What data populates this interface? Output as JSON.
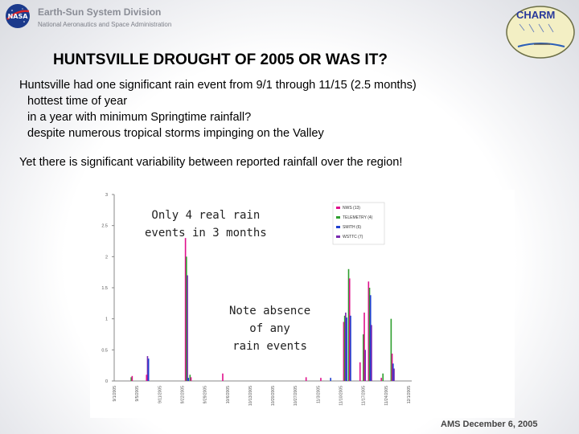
{
  "header": {
    "org_title": "Earth-Sun System Division",
    "org_subtitle": "National Aeronautics and Space Administration",
    "nasa_logo_text": "NASA",
    "charm_logo_text": "CHARM"
  },
  "slide": {
    "title": "HUNTSVILLE DROUGHT OF 2005 OR WAS IT?",
    "lines": [
      "Huntsville had one significant rain event from 9/1 through 11/15 (2.5 months)",
      "hottest time of year",
      "in a year with minimum Springtime rainfall?",
      "despite numerous tropical storms impinging on the Valley",
      "Yet there is significant variability between reported rainfall over the region!"
    ],
    "annotation_1": [
      "Only 4 real rain",
      "events in 3 months"
    ],
    "annotation_2": [
      "Note absence",
      "of any",
      "rain events"
    ],
    "footer": "AMS  December 6, 2005"
  },
  "chart_data": {
    "type": "bar",
    "title": "",
    "xlabel": "",
    "ylabel": "",
    "ylim": [
      0,
      3
    ],
    "yticks": [
      "0",
      "0.5",
      "1",
      "1.5",
      "2",
      "2.5",
      "3"
    ],
    "xticks": [
      "9/1/2005",
      "9/5/2005",
      "9/11/2005",
      "9/22/2005",
      "9/29/2005",
      "10/6/2005",
      "10/13/2005",
      "10/20/2005",
      "10/27/2005",
      "11/3/2005",
      "11/10/2005",
      "11/17/2005",
      "11/24/2005",
      "12/1/2005"
    ],
    "legend_position": "top-right",
    "series": [
      {
        "name": "NWS (13)",
        "color": "#e0108c"
      },
      {
        "name": "TELEMETRY (4)",
        "color": "#2e9e2e"
      },
      {
        "name": "SMITH (6)",
        "color": "#1e3fd0"
      },
      {
        "name": "WSTTC (7)",
        "color": "#7a2ab0"
      }
    ],
    "bars": [
      {
        "day": 5,
        "series": 1,
        "value": 0.06
      },
      {
        "day": 5.3,
        "series": 0,
        "value": 0.08
      },
      {
        "day": 10,
        "series": 3,
        "value": 0.4
      },
      {
        "day": 10.3,
        "series": 2,
        "value": 0.36
      },
      {
        "day": 9.7,
        "series": 0,
        "value": 0.1
      },
      {
        "day": 21.6,
        "series": 0,
        "value": 2.3
      },
      {
        "day": 21.9,
        "series": 1,
        "value": 2.0
      },
      {
        "day": 22.2,
        "series": 3,
        "value": 1.7
      },
      {
        "day": 22.5,
        "series": 2,
        "value": 0.05
      },
      {
        "day": 23,
        "series": 1,
        "value": 0.1
      },
      {
        "day": 23.3,
        "series": 0,
        "value": 0.06
      },
      {
        "day": 33,
        "series": 0,
        "value": 0.12
      },
      {
        "day": 58.5,
        "series": 0,
        "value": 0.06
      },
      {
        "day": 63,
        "series": 0,
        "value": 0.05
      },
      {
        "day": 66,
        "series": 2,
        "value": 0.05
      },
      {
        "day": 70,
        "series": 0,
        "value": 0.95
      },
      {
        "day": 70.3,
        "series": 1,
        "value": 1.05
      },
      {
        "day": 70.6,
        "series": 3,
        "value": 1.1
      },
      {
        "day": 70.9,
        "series": 2,
        "value": 1.02
      },
      {
        "day": 71.5,
        "series": 1,
        "value": 1.8
      },
      {
        "day": 71.8,
        "series": 0,
        "value": 1.65
      },
      {
        "day": 72.1,
        "series": 2,
        "value": 1.05
      },
      {
        "day": 75,
        "series": 0,
        "value": 0.3
      },
      {
        "day": 76,
        "series": 1,
        "value": 0.75
      },
      {
        "day": 76.3,
        "series": 0,
        "value": 1.1
      },
      {
        "day": 76.6,
        "series": 3,
        "value": 0.5
      },
      {
        "day": 77.6,
        "series": 0,
        "value": 1.6
      },
      {
        "day": 77.9,
        "series": 1,
        "value": 1.5
      },
      {
        "day": 78.2,
        "series": 2,
        "value": 1.38
      },
      {
        "day": 78.5,
        "series": 3,
        "value": 0.9
      },
      {
        "day": 81.5,
        "series": 0,
        "value": 0.05
      },
      {
        "day": 82,
        "series": 1,
        "value": 0.12
      },
      {
        "day": 84.5,
        "series": 1,
        "value": 1.0
      },
      {
        "day": 84.8,
        "series": 0,
        "value": 0.44
      },
      {
        "day": 85.1,
        "series": 2,
        "value": 0.28
      },
      {
        "day": 85.4,
        "series": 3,
        "value": 0.2
      }
    ]
  }
}
